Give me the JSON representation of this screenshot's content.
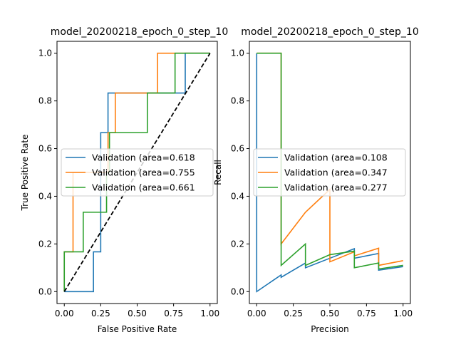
{
  "colors": {
    "blue": "#1f77b4",
    "orange": "#ff7f0e",
    "green": "#2ca02c",
    "diagonal": "#000000"
  },
  "chart_data": [
    {
      "type": "line",
      "title": "model_20200218_epoch_0_step_10",
      "xlabel": "False Positive Rate",
      "ylabel": "True Positive Rate",
      "xlim": [
        -0.05,
        1.05
      ],
      "ylim": [
        -0.05,
        1.05
      ],
      "xticks": [
        0.0,
        0.25,
        0.5,
        0.75,
        1.0
      ],
      "xtick_labels": [
        "0.00",
        "0.25",
        "0.50",
        "0.75",
        "1.00"
      ],
      "yticks": [
        0.0,
        0.2,
        0.4,
        0.6,
        0.8,
        1.0
      ],
      "ytick_labels": [
        "0.0",
        "0.2",
        "0.4",
        "0.6",
        "0.8",
        "1.0"
      ],
      "legend_position": "center-right",
      "diagonal": {
        "x": [
          0,
          1
        ],
        "y": [
          0,
          1
        ],
        "style": "dashed"
      },
      "series": [
        {
          "name": "Validation (area=0.618",
          "color": "blue",
          "x": [
            0,
            0.2,
            0.2,
            0.25,
            0.25,
            0.3,
            0.3,
            0.42,
            0.42,
            0.83,
            0.83,
            1.0
          ],
          "y": [
            0,
            0,
            0.167,
            0.167,
            0.667,
            0.667,
            0.833,
            0.833,
            0.833,
            0.833,
            1.0,
            1.0
          ]
        },
        {
          "name": "Validation (area=0.755",
          "color": "orange",
          "x": [
            0,
            0,
            0.06,
            0.06,
            0.3,
            0.3,
            0.35,
            0.35,
            0.64,
            0.64,
            1.0
          ],
          "y": [
            0,
            0.167,
            0.167,
            0.5,
            0.5,
            0.667,
            0.667,
            0.833,
            0.833,
            1.0,
            1.0
          ]
        },
        {
          "name": "Validation (area=0.661",
          "color": "green",
          "x": [
            0,
            0,
            0.13,
            0.13,
            0.29,
            0.29,
            0.31,
            0.31,
            0.57,
            0.57,
            0.76,
            0.76,
            1.0
          ],
          "y": [
            0,
            0.167,
            0.167,
            0.333,
            0.333,
            0.5,
            0.5,
            0.667,
            0.667,
            0.833,
            0.833,
            1.0,
            1.0
          ]
        }
      ]
    },
    {
      "type": "line",
      "title": "model_20200218_epoch_0_step_10",
      "xlabel": "Precision",
      "ylabel": "Recall",
      "xlim": [
        -0.05,
        1.05
      ],
      "ylim": [
        -0.05,
        1.05
      ],
      "xticks": [
        0.0,
        0.25,
        0.5,
        0.75,
        1.0
      ],
      "xtick_labels": [
        "0.00",
        "0.25",
        "0.50",
        "0.75",
        "1.00"
      ],
      "yticks": [
        0.0,
        0.2,
        0.4,
        0.6,
        0.8,
        1.0
      ],
      "ytick_labels": [
        "0.0",
        "0.2",
        "0.4",
        "0.6",
        "0.8",
        "1.0"
      ],
      "legend_position": "center-right",
      "series": [
        {
          "name": "Validation (area=0.108",
          "color": "blue",
          "x": [
            0,
            0,
            0.167,
            0.167,
            0.333,
            0.333,
            0.5,
            0.5,
            0.667,
            0.667,
            0.833,
            0.833,
            1.0
          ],
          "y": [
            1.0,
            0,
            0.07,
            0.06,
            0.12,
            0.1,
            0.14,
            0.14,
            0.18,
            0.14,
            0.16,
            0.09,
            0.105
          ]
        },
        {
          "name": "Validation (area=0.347",
          "color": "orange",
          "x": [
            0,
            0.167,
            0.167,
            0.333,
            0.5,
            0.5,
            0.667,
            0.667,
            0.833,
            0.833,
            1.0
          ],
          "y": [
            1.0,
            1.0,
            0.2,
            0.333,
            0.429,
            0.125,
            0.167,
            0.15,
            0.182,
            0.11,
            0.13
          ]
        },
        {
          "name": "Validation (area=0.277",
          "color": "green",
          "x": [
            0,
            0.167,
            0.167,
            0.333,
            0.333,
            0.5,
            0.5,
            0.667,
            0.667,
            0.833,
            0.833,
            1.0
          ],
          "y": [
            1.0,
            1.0,
            0.11,
            0.2,
            0.11,
            0.155,
            0.155,
            0.17,
            0.1,
            0.12,
            0.095,
            0.11
          ]
        }
      ]
    }
  ]
}
